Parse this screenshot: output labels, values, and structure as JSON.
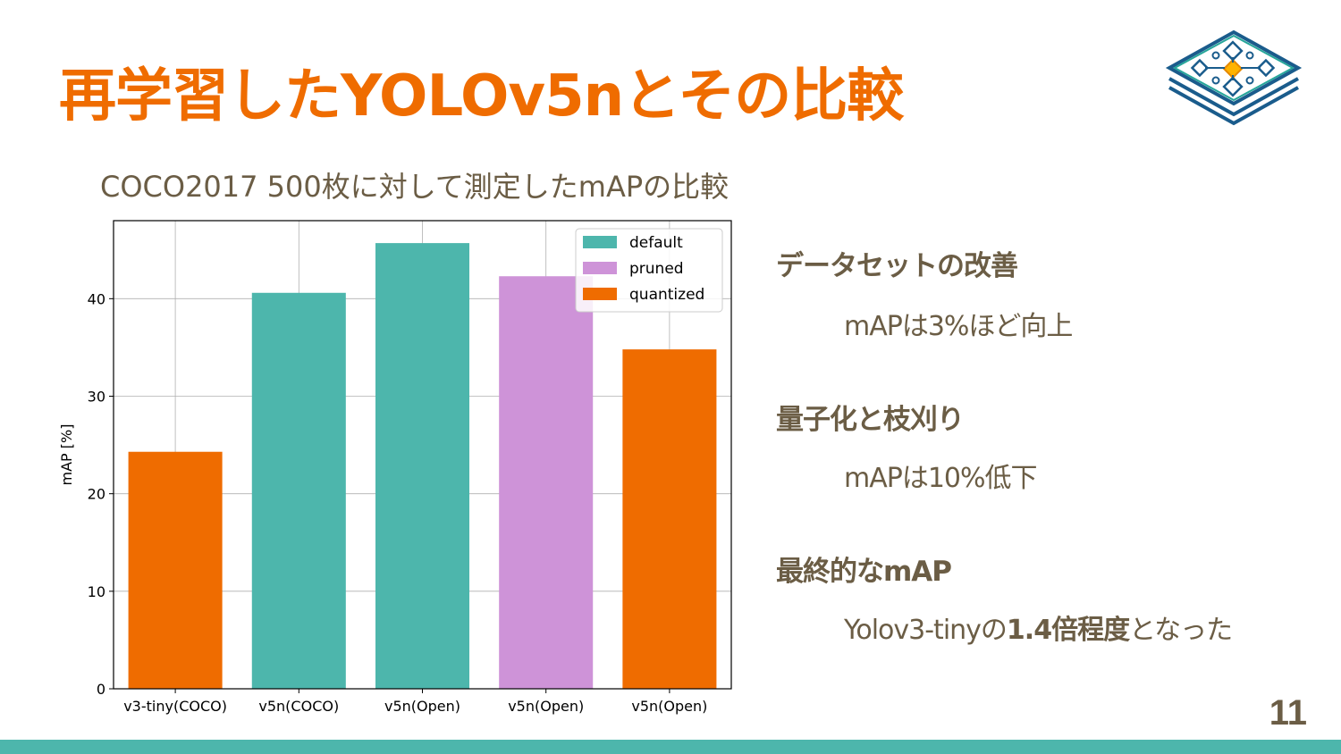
{
  "slide": {
    "title": "再学習したYOLOv5nとその比較",
    "subtitle": "COCO2017 500枚に対して測定したmAPの比較",
    "page_number": "11",
    "accent_color": "#ef6c00",
    "text_color": "#6b5d45",
    "footer_color": "#4db6ac"
  },
  "notes": {
    "item1_heading": "データセットの改善",
    "item1_body": "mAPは3%ほど向上",
    "item2_heading": "量子化と枝刈り",
    "item2_body": "mAPは10%低下",
    "item3_heading": "最終的なmAP",
    "item3_body_prefix": "Yolov3-tinyの",
    "item3_body_bold": "1.4倍程度",
    "item3_body_suffix": "となった"
  },
  "logo": {
    "icon": "flowchart-stack-icon"
  },
  "chart_data": {
    "type": "bar",
    "categories": [
      "v3-tiny(COCO)",
      "v5n(COCO)",
      "v5n(Open)",
      "v5n(Open)",
      "v5n(Open)"
    ],
    "values": [
      24.3,
      40.6,
      45.7,
      42.3,
      34.8
    ],
    "bar_series": [
      "quantized",
      "default",
      "default",
      "pruned",
      "quantized"
    ],
    "series": [
      {
        "name": "default",
        "color": "#4db6ac"
      },
      {
        "name": "pruned",
        "color": "#ce93d8"
      },
      {
        "name": "quantized",
        "color": "#ef6c00"
      }
    ],
    "ylabel": "mAP [%]",
    "xlabel": "",
    "ylim": [
      0,
      48
    ],
    "yticks": [
      0,
      10,
      20,
      30,
      40
    ],
    "grid": true,
    "legend_position": "top-right"
  }
}
